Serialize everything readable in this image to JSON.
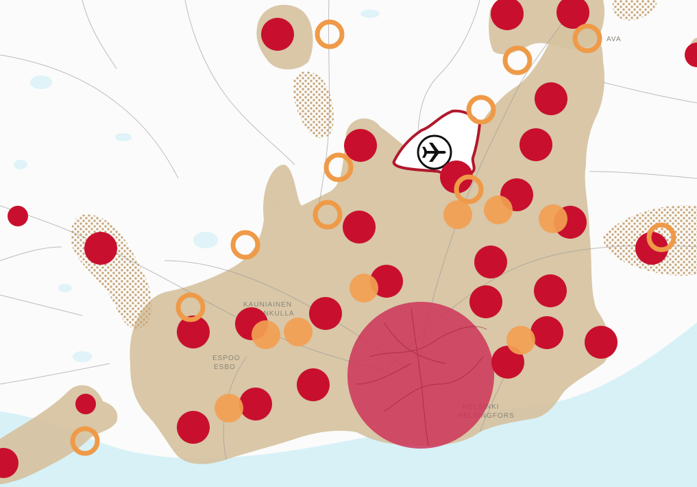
{
  "map": {
    "title": "",
    "colors": {
      "land": "#fbfbfb",
      "water": "#dff3f8",
      "sea": "#d7f1f7",
      "urban_zone": "#d6c2a0",
      "urban_hatch": "#c9a77a",
      "large_centre": "#c8102e",
      "local_centre_fill": "#f2a052",
      "local_centre_ring": "#ef9a48",
      "helsinki_core": "#cd2e55",
      "airport_outline": "#b0182c",
      "road": "#9a9a9a"
    },
    "labels": {
      "espoo": "ESPOO",
      "esbo": "ESBO",
      "kauniainen": "KAUNIAINEN",
      "grankulla": "GRANKULLA",
      "helsinki": "HELSINKI",
      "helsingfors": "HELSINGFORS",
      "vantaa_partial": "AVA"
    },
    "icons": {
      "airport": "airplane-icon"
    },
    "legend_categories": {
      "large_centre": "large-centre-marker",
      "local_centre": "local-centre-marker",
      "planned_centre": "planned-centre-ring-marker",
      "city_core": "city-core-marker",
      "development_zone": "hatched-development-zone"
    }
  }
}
